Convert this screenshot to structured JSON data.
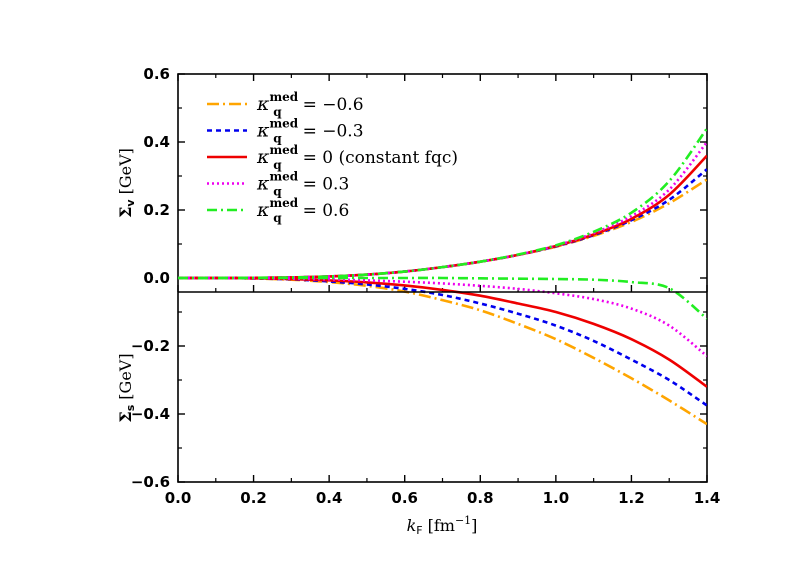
{
  "chart_data": {
    "type": "line",
    "xlabel": "k_F [fm^-1]",
    "xlabel_main": "k",
    "xlabel_sub": "F",
    "xlabel_unit": "[fm",
    "xlabel_unit_sup": "−1",
    "xlabel_unit_close": "]",
    "xlim": [
      0.0,
      1.4
    ],
    "ylim": [
      -0.6,
      0.6
    ],
    "xticks": [
      "0.0",
      "0.2",
      "0.4",
      "0.6",
      "0.8",
      "1.0",
      "1.2",
      "1.4"
    ],
    "yticks": [
      "−0.6",
      "−0.4",
      "−0.2",
      "0.0",
      "0.2",
      "0.4",
      "0.6"
    ],
    "ylabel_upper": "Σ_v [GeV]",
    "ylabel_upper_main": "Σ",
    "ylabel_upper_sub": "v",
    "ylabel_upper_unit": "[GeV]",
    "ylabel_lower": "Σ_s [GeV]",
    "ylabel_lower_main": "Σ",
    "ylabel_lower_sub": "s",
    "ylabel_lower_unit": "[GeV]",
    "legend_position": "top-left",
    "grid": false,
    "x": [
      0.0,
      0.1,
      0.2,
      0.3,
      0.4,
      0.5,
      0.6,
      0.7,
      0.8,
      0.9,
      1.0,
      1.1,
      1.2,
      1.3,
      1.4
    ],
    "series": [
      {
        "name": "κ_q^med = −0.6",
        "legend_value": "= −0.6",
        "color": "#FFA500",
        "dash": "12 4 2 4",
        "sigma_v": [
          0,
          0,
          0.0005,
          0.0016,
          0.0045,
          0.01,
          0.019,
          0.032,
          0.048,
          0.068,
          0.092,
          0.124,
          0.165,
          0.22,
          0.29
        ],
        "sigma_s": [
          0,
          0,
          -0.0015,
          -0.005,
          -0.012,
          -0.023,
          -0.04,
          -0.065,
          -0.095,
          -0.135,
          -0.18,
          -0.235,
          -0.295,
          -0.36,
          -0.43
        ]
      },
      {
        "name": "κ_q^med = −0.3",
        "legend_value": "= −0.3",
        "color": "#0000EE",
        "dash": "5 4",
        "sigma_v": [
          0,
          0,
          0.0005,
          0.0016,
          0.0045,
          0.01,
          0.019,
          0.032,
          0.048,
          0.068,
          0.093,
          0.126,
          0.17,
          0.23,
          0.32
        ],
        "sigma_s": [
          0,
          0,
          -0.0012,
          -0.004,
          -0.01,
          -0.019,
          -0.032,
          -0.05,
          -0.075,
          -0.105,
          -0.14,
          -0.185,
          -0.24,
          -0.3,
          -0.375
        ]
      },
      {
        "name": "κ_q^med = 0 (constant fqc)",
        "legend_value": "= 0 (constant fqc)",
        "color": "#EE0000",
        "dash": "",
        "sigma_v": [
          0,
          0,
          0.0005,
          0.0016,
          0.0045,
          0.01,
          0.019,
          0.032,
          0.048,
          0.068,
          0.094,
          0.128,
          0.174,
          0.245,
          0.36
        ],
        "sigma_s": [
          0,
          0,
          -0.001,
          -0.003,
          -0.007,
          -0.013,
          -0.022,
          -0.035,
          -0.052,
          -0.075,
          -0.1,
          -0.135,
          -0.18,
          -0.24,
          -0.32
        ]
      },
      {
        "name": "κ_q^med = 0.3",
        "legend_value": "= 0.3",
        "color": "#EE00EE",
        "dash": "2 3",
        "sigma_v": [
          0,
          0,
          0.0005,
          0.0016,
          0.0045,
          0.01,
          0.019,
          0.032,
          0.048,
          0.068,
          0.095,
          0.132,
          0.182,
          0.26,
          0.4
        ],
        "sigma_s": [
          0,
          0,
          -0.0006,
          -0.002,
          -0.004,
          -0.007,
          -0.011,
          -0.016,
          -0.023,
          -0.032,
          -0.045,
          -0.062,
          -0.09,
          -0.14,
          -0.23
        ]
      },
      {
        "name": "κ_q^med = 0.6",
        "legend_value": "= 0.6",
        "color": "#22EE22",
        "dash": "10 4 2 4",
        "sigma_v": [
          0,
          0,
          0.0005,
          0.0016,
          0.0045,
          0.01,
          0.019,
          0.032,
          0.048,
          0.069,
          0.096,
          0.136,
          0.192,
          0.285,
          0.44
        ],
        "sigma_s": [
          0,
          0,
          0,
          0,
          0,
          0,
          0,
          0,
          -0.001,
          -0.002,
          -0.003,
          -0.005,
          -0.012,
          -0.03,
          -0.12
        ]
      }
    ]
  }
}
